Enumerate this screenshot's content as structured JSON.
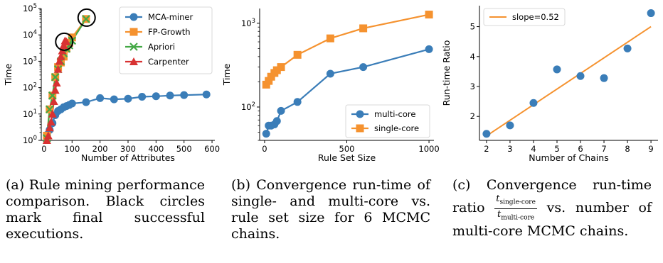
{
  "chart_data": [
    {
      "type": "line",
      "xlabel": "Number of Attributes",
      "ylabel": "Time",
      "xlim": [
        -10,
        610
      ],
      "ylim": [
        1,
        100000
      ],
      "yscale": "log",
      "xticks": [
        0,
        100,
        200,
        300,
        400,
        500,
        600
      ],
      "yticks": [
        "10^0",
        "10^1",
        "10^2",
        "10^3",
        "10^4",
        "10^5"
      ],
      "legend": "top-right",
      "series": [
        {
          "name": "MCA-miner",
          "color": "#3a7db8",
          "marker": "circle",
          "x": [
            10,
            20,
            30,
            40,
            50,
            60,
            70,
            80,
            90,
            100,
            150,
            200,
            250,
            300,
            350,
            400,
            450,
            500,
            580
          ],
          "y": [
            1.6,
            2.5,
            4.5,
            9,
            13,
            15,
            18,
            20,
            22,
            25,
            28,
            40,
            36,
            38,
            45,
            47,
            50,
            52,
            55
          ]
        },
        {
          "name": "FP-Growth",
          "color": "#f5922f",
          "marker": "square",
          "x": [
            10,
            20,
            30,
            40,
            50,
            60,
            70,
            80,
            90,
            100,
            150
          ],
          "y": [
            1.5,
            15,
            50,
            250,
            600,
            900,
            1500,
            3000,
            5000,
            8000,
            40000
          ]
        },
        {
          "name": "Apriori",
          "color": "#43a845",
          "marker": "x",
          "x": [
            10,
            20,
            30,
            40,
            50,
            60,
            70,
            80,
            90,
            100,
            150
          ],
          "y": [
            1.2,
            15,
            50,
            250,
            500,
            1000,
            2000,
            3000,
            4000,
            6000,
            40000
          ]
        },
        {
          "name": "Carpenter",
          "color": "#d83232",
          "marker": "triangle",
          "x": [
            10,
            15,
            20,
            25,
            30,
            35,
            40,
            45,
            50,
            55,
            60,
            65,
            70,
            75,
            80
          ],
          "y": [
            1,
            1.5,
            3,
            5,
            10,
            30,
            80,
            150,
            500,
            1000,
            1500,
            2500,
            4000,
            6000,
            5500
          ]
        }
      ],
      "highlight_circles": [
        {
          "x": 72,
          "y": 5500
        },
        {
          "x": 152,
          "y": 45000
        }
      ]
    },
    {
      "type": "line",
      "xlabel": "Rule Set Size",
      "ylabel": "Time",
      "xlim": [
        -30,
        1030
      ],
      "ylim": [
        40,
        1500
      ],
      "yscale": "log",
      "xticks": [
        0,
        500,
        1000
      ],
      "yticks": [
        "10^2",
        "10^3"
      ],
      "legend": "bottom-right",
      "series": [
        {
          "name": "multi-core",
          "color": "#3a7db8",
          "marker": "circle",
          "x": [
            10,
            25,
            40,
            60,
            75,
            100,
            200,
            400,
            600,
            1000
          ],
          "y": [
            48,
            60,
            60,
            62,
            68,
            90,
            115,
            250,
            300,
            490
          ]
        },
        {
          "name": "single-core",
          "color": "#f5922f",
          "marker": "square",
          "x": [
            10,
            25,
            40,
            60,
            75,
            100,
            200,
            400,
            600,
            1000
          ],
          "y": [
            185,
            205,
            230,
            255,
            275,
            300,
            420,
            660,
            870,
            1270
          ]
        }
      ]
    },
    {
      "type": "scatter",
      "xlabel": "Number of Chains",
      "ylabel": "Run-time Ratio",
      "xlim": [
        1.7,
        9.3
      ],
      "ylim": [
        1.2,
        5.7
      ],
      "xticks": [
        2,
        3,
        4,
        5,
        6,
        7,
        8,
        9
      ],
      "yticks": [
        2,
        3,
        4,
        5
      ],
      "legend": "top-left",
      "points": {
        "x": [
          2,
          3,
          4,
          5,
          6,
          7,
          8,
          9
        ],
        "y": [
          1.42,
          1.7,
          2.45,
          3.57,
          3.35,
          3.28,
          4.27,
          5.45
        ]
      },
      "series": [
        {
          "name": "slope=0.52",
          "color": "#f5922f",
          "x": [
            2,
            9
          ],
          "y": [
            1.35,
            5.0
          ]
        }
      ],
      "point_color": "#3a7db8"
    }
  ],
  "captions": {
    "a": {
      "label": "(a)",
      "text": "Rule mining performance comparison. Black circles mark final successful executions."
    },
    "b": {
      "label": "(b)",
      "text": "Convergence run-time of single- and multi-core vs. rule set size for 6 MCMC chains."
    },
    "c": {
      "label": "(c)",
      "text": "Convergence run-time ratio",
      "ratio_num": "t",
      "ratio_num_sub": "single-core",
      "ratio_den": "t",
      "ratio_den_sub": "multi-core",
      "text_after": "vs. number of multi-core MCMC chains."
    }
  }
}
